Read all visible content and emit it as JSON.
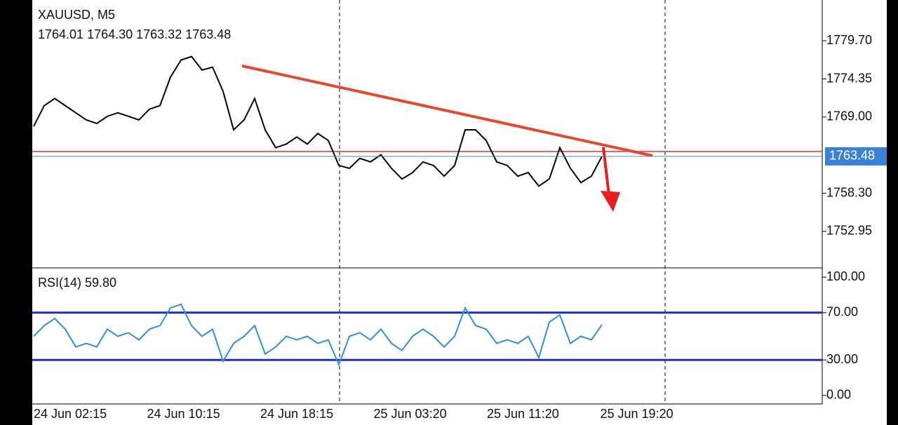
{
  "chart_data": [
    {
      "type": "line",
      "title": "XAUUSD, M5",
      "subtitle": "1764.01 1764.30 1763.32 1763.48",
      "color": "#000000",
      "values": [
        1767.7,
        1770.6,
        1771.6,
        1770.6,
        1769.6,
        1768.6,
        1768.1,
        1769.1,
        1769.6,
        1769.1,
        1768.6,
        1770.1,
        1770.6,
        1774.6,
        1777.0,
        1777.5,
        1775.6,
        1776.0,
        1772.6,
        1767.2,
        1768.6,
        1771.6,
        1767.2,
        1764.7,
        1765.2,
        1766.2,
        1765.2,
        1766.7,
        1765.7,
        1762.2,
        1761.8,
        1763.2,
        1762.7,
        1763.7,
        1761.8,
        1760.3,
        1761.2,
        1762.7,
        1762.2,
        1760.7,
        1762.2,
        1767.2,
        1767.2,
        1765.7,
        1762.7,
        1762.2,
        1760.7,
        1761.2,
        1759.3,
        1760.3,
        1764.7,
        1761.8,
        1759.8,
        1760.7,
        1763.48
      ],
      "ylim": [
        1747.82,
        1785.43
      ],
      "yticks": [
        {
          "value": 1779.7,
          "label": "1779.70"
        },
        1774.35,
        {
          "value": 1769,
          "label": "1769.00"
        },
        {
          "value": 1758.3,
          "label": "1758.30"
        },
        1752.95
      ],
      "x_labels": [
        "24 Jun 02:15",
        "24 Jun 10:15",
        "24 Jun 18:15",
        "25 Jun 03:20",
        "25 Jun 11:20",
        "25 Jun 19:20"
      ]
    },
    {
      "type": "line",
      "title": "RSI(14) 59.80",
      "color": "#2f8fdf",
      "values": [
        50,
        59,
        65,
        56,
        41,
        44,
        41,
        56,
        50,
        53,
        47,
        56,
        59,
        74,
        77,
        59,
        50,
        56,
        29,
        44,
        50,
        59,
        35,
        41,
        50,
        47,
        50,
        44,
        47,
        26,
        50,
        53,
        47,
        56,
        44,
        38,
        50,
        56,
        50,
        41,
        50,
        74,
        59,
        56,
        44,
        47,
        44,
        50,
        32,
        62,
        68,
        44,
        50,
        47,
        59.8
      ],
      "ylim": [
        -7.2,
        107.8
      ],
      "yticks": [
        {
          "value": 100,
          "label": "100.00"
        },
        {
          "value": 70,
          "label": "70.00"
        },
        {
          "value": 30,
          "label": "30.00"
        },
        {
          "value": 0,
          "label": "0.00"
        }
      ],
      "hlines": [
        70,
        30
      ],
      "hline_color": "#1f2fbf"
    }
  ]
}
